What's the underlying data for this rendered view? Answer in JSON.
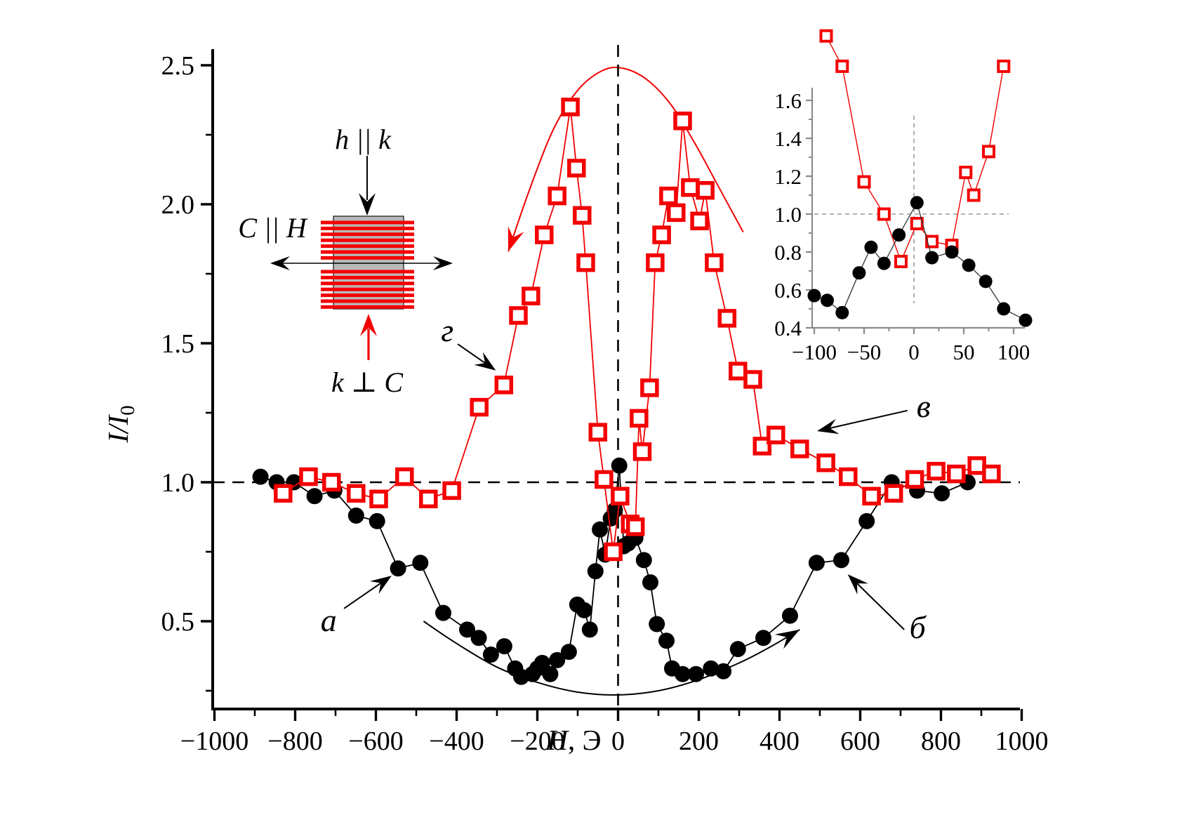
{
  "figure": {
    "background": "#ffffff",
    "colors": {
      "series_black": "#000000",
      "series_red": "#f40000",
      "inset_axis_gray": "#8a8a8a",
      "inset_dash_gray": "#9a9a9a",
      "sample_gray": "#b9b9b9"
    }
  },
  "chart_data": [
    {
      "type": "scatter",
      "title": "",
      "xlabel_italic": "H",
      "xlabel_rest": ", Э",
      "ylabel_italic": "I/I",
      "ylabel_sub": "0",
      "xlim": [
        -1000,
        1000
      ],
      "ylim": [
        0.184,
        2.558
      ],
      "grid": false,
      "legend": "none",
      "xticks": [
        {
          "v": -1000,
          "label": "−1000"
        },
        {
          "v": -800,
          "label": "−800"
        },
        {
          "v": -600,
          "label": "−600"
        },
        {
          "v": -400,
          "label": "−400"
        },
        {
          "v": -200,
          "label": "−200"
        },
        {
          "v": 0,
          "label": "0"
        },
        {
          "v": 200,
          "label": "200"
        },
        {
          "v": 400,
          "label": "400"
        },
        {
          "v": 600,
          "label": "600"
        },
        {
          "v": 800,
          "label": "800"
        },
        {
          "v": 1000,
          "label": "1000"
        }
      ],
      "xminor": [
        -900,
        -700,
        -500,
        -300,
        -100,
        100,
        300,
        500,
        700,
        900
      ],
      "yticks": [
        {
          "v": 0.5,
          "label": "0.5"
        },
        {
          "v": 1.0,
          "label": "1.0"
        },
        {
          "v": 1.5,
          "label": "1.5"
        },
        {
          "v": 2.0,
          "label": "2.0"
        },
        {
          "v": 2.5,
          "label": "2.5"
        }
      ],
      "yminor": [
        0.25,
        0.75,
        1.25,
        1.75,
        2.25
      ],
      "reflines": {
        "h_dashed_y": 1.0,
        "v_dashed_x": 0
      },
      "series": [
        {
          "name": "circles-a-b",
          "marker": "circle-filled",
          "color": "#000000",
          "points": [
            [
              -886,
              1.02
            ],
            [
              -846,
              1.0
            ],
            [
              -803,
              1.0
            ],
            [
              -752,
              0.95
            ],
            [
              -703,
              0.97
            ],
            [
              -649,
              0.88
            ],
            [
              -597,
              0.86
            ],
            [
              -545,
              0.69
            ],
            [
              -490,
              0.71
            ],
            [
              -433,
              0.53
            ],
            [
              -374,
              0.47
            ],
            [
              -345,
              0.44
            ],
            [
              -315,
              0.38
            ],
            [
              -282,
              0.41
            ],
            [
              -255,
              0.33
            ],
            [
              -240,
              0.3
            ],
            [
              -212,
              0.31
            ],
            [
              -200,
              0.33
            ],
            [
              -188,
              0.35
            ],
            [
              -168,
              0.31
            ],
            [
              -151,
              0.36
            ],
            [
              -122,
              0.39
            ],
            [
              -101,
              0.56
            ],
            [
              -84,
              0.54
            ],
            [
              -70,
              0.47
            ],
            [
              -56,
              0.68
            ],
            [
              -45,
              0.83
            ],
            [
              -32,
              0.74
            ],
            [
              -18,
              0.87
            ],
            [
              -8,
              0.9
            ],
            [
              3,
              1.06
            ],
            [
              14,
              0.77
            ],
            [
              25,
              0.78
            ],
            [
              43,
              0.8
            ],
            [
              64,
              0.72
            ],
            [
              80,
              0.64
            ],
            [
              96,
              0.49
            ],
            [
              120,
              0.43
            ],
            [
              134,
              0.33
            ],
            [
              160,
              0.31
            ],
            [
              193,
              0.31
            ],
            [
              230,
              0.33
            ],
            [
              261,
              0.32
            ],
            [
              297,
              0.4
            ],
            [
              360,
              0.44
            ],
            [
              426,
              0.52
            ],
            [
              492,
              0.71
            ],
            [
              553,
              0.72
            ],
            [
              616,
              0.86
            ],
            [
              678,
              1.0
            ],
            [
              741,
              0.97
            ],
            [
              802,
              0.96
            ],
            [
              866,
              1.0
            ]
          ]
        },
        {
          "name": "squares-v-g",
          "marker": "square-open",
          "color": "#f40000",
          "points": [
            [
              -830,
              0.96
            ],
            [
              -767,
              1.02
            ],
            [
              -710,
              1.0
            ],
            [
              -649,
              0.96
            ],
            [
              -593,
              0.94
            ],
            [
              -529,
              1.02
            ],
            [
              -470,
              0.94
            ],
            [
              -412,
              0.97
            ],
            [
              -344,
              1.27
            ],
            [
              -283,
              1.35
            ],
            [
              -247,
              1.6
            ],
            [
              -216,
              1.67
            ],
            [
              -183,
              1.89
            ],
            [
              -151,
              2.03
            ],
            [
              -118,
              2.35
            ],
            [
              -103,
              2.13
            ],
            [
              -89,
              1.96
            ],
            [
              -80,
              1.79
            ],
            [
              -50,
              1.18
            ],
            [
              -35,
              1.01
            ],
            [
              -12,
              0.75
            ],
            [
              5,
              0.95
            ],
            [
              30,
              0.85
            ],
            [
              43,
              0.84
            ],
            [
              52,
              1.23
            ],
            [
              60,
              1.11
            ],
            [
              78,
              1.34
            ],
            [
              92,
              1.79
            ],
            [
              108,
              1.89
            ],
            [
              125,
              2.03
            ],
            [
              144,
              1.97
            ],
            [
              160,
              2.3
            ],
            [
              179,
              2.06
            ],
            [
              202,
              1.94
            ],
            [
              216,
              2.05
            ],
            [
              238,
              1.79
            ],
            [
              270,
              1.59
            ],
            [
              297,
              1.4
            ],
            [
              334,
              1.37
            ],
            [
              357,
              1.13
            ],
            [
              391,
              1.17
            ],
            [
              450,
              1.12
            ],
            [
              515,
              1.07
            ],
            [
              570,
              1.02
            ],
            [
              628,
              0.95
            ],
            [
              683,
              0.96
            ],
            [
              735,
              1.01
            ],
            [
              788,
              1.04
            ],
            [
              838,
              1.03
            ],
            [
              889,
              1.06
            ],
            [
              925,
              1.03
            ]
          ]
        }
      ],
      "guide_curves": [
        {
          "name": "red-envelope-sweep",
          "color": "#f40000",
          "arrow_at": "start",
          "points": [
            [
              -272,
              1.83
            ],
            [
              -220,
              2.05
            ],
            [
              -160,
              2.27
            ],
            [
              -100,
              2.41
            ],
            [
              -40,
              2.48
            ],
            [
              10,
              2.49
            ],
            [
              70,
              2.45
            ],
            [
              130,
              2.36
            ],
            [
              190,
              2.22
            ],
            [
              250,
              2.06
            ],
            [
              310,
              1.9
            ]
          ]
        },
        {
          "name": "black-envelope-sweep",
          "color": "#000000",
          "arrow_at": "end",
          "points": [
            [
              -482,
              0.5
            ],
            [
              -400,
              0.42
            ],
            [
              -300,
              0.335
            ],
            [
              -200,
              0.28
            ],
            [
              -100,
              0.245
            ],
            [
              0,
              0.235
            ],
            [
              100,
              0.25
            ],
            [
              200,
              0.29
            ],
            [
              300,
              0.35
            ],
            [
              380,
              0.41
            ],
            [
              450,
              0.47
            ]
          ]
        }
      ],
      "annotations": [
        {
          "label": "а",
          "x": -717,
          "y": 0.505,
          "ax": -679,
          "ay": 0.546,
          "tx": -561,
          "ty": 0.664
        },
        {
          "label": "б",
          "x": 742,
          "y": 0.48,
          "ax": 709,
          "ay": 0.47,
          "tx": 569,
          "ty": 0.669
        },
        {
          "label": "в",
          "x": 757,
          "y": 1.275,
          "ax": 717,
          "ay": 1.258,
          "tx": 493,
          "ty": 1.184
        },
        {
          "label": "г",
          "x": -423,
          "y": 1.548,
          "ax": -397,
          "ay": 1.497,
          "tx": -303,
          "ty": 1.402
        }
      ]
    },
    {
      "type": "scatter",
      "title": "",
      "xlabel_italic": "",
      "xlabel_rest": "",
      "xlim": [
        -102,
        111
      ],
      "ylim": [
        0.4,
        1.667
      ],
      "grid": false,
      "xticks": [
        {
          "v": -100,
          "label": "−100"
        },
        {
          "v": -50,
          "label": "−50"
        },
        {
          "v": 0,
          "label": "0"
        },
        {
          "v": 50,
          "label": "50"
        },
        {
          "v": 100,
          "label": "100"
        }
      ],
      "xminor": [
        -75,
        -25,
        25,
        75
      ],
      "yticks": [
        {
          "v": 0.4,
          "label": "0.4"
        },
        {
          "v": 0.6,
          "label": "0.6"
        },
        {
          "v": 0.8,
          "label": "0.8"
        },
        {
          "v": 1.0,
          "label": "1.0"
        },
        {
          "v": 1.2,
          "label": "1.2"
        },
        {
          "v": 1.4,
          "label": "1.4"
        },
        {
          "v": 1.6,
          "label": "1.6"
        }
      ],
      "yminor": [
        0.5,
        0.7,
        0.9,
        1.1,
        1.3,
        1.5
      ],
      "reflines": {
        "h_dashed_y": 1.0,
        "h_extent": [
          -100,
          95
        ],
        "v_dashed_x": 0,
        "v_extent": [
          0.53,
          1.52
        ]
      },
      "series": [
        {
          "name": "inset-squares",
          "marker": "square-open",
          "color": "#f40000",
          "points": [
            [
              -88,
              1.94
            ],
            [
              -72,
              1.78
            ],
            [
              -50,
              1.17
            ],
            [
              -30,
              1.0
            ],
            [
              -13,
              0.75
            ],
            [
              3,
              0.95
            ],
            [
              18,
              0.855
            ],
            [
              38,
              0.835
            ],
            [
              52,
              1.22
            ],
            [
              60,
              1.1
            ],
            [
              75,
              1.33
            ],
            [
              90,
              1.78
            ]
          ]
        },
        {
          "name": "inset-circles",
          "marker": "circle-filled",
          "color": "#000000",
          "points": [
            [
              -100,
              0.57
            ],
            [
              -87,
              0.545
            ],
            [
              -72,
              0.48
            ],
            [
              -55,
              0.69
            ],
            [
              -43,
              0.825
            ],
            [
              -30,
              0.74
            ],
            [
              -15,
              0.89
            ],
            [
              3,
              1.06
            ],
            [
              18,
              0.77
            ],
            [
              38,
              0.8
            ],
            [
              55,
              0.73
            ],
            [
              72,
              0.645
            ],
            [
              90,
              0.5
            ],
            [
              112,
              0.44
            ]
          ]
        }
      ]
    }
  ],
  "diagram": {
    "label_top": "h || k",
    "label_left": "C || H",
    "label_bottom": "k ⊥ C"
  }
}
